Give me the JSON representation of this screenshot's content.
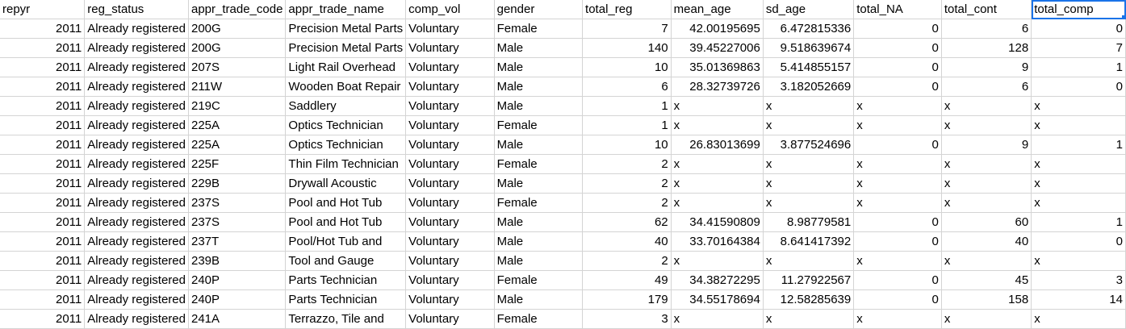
{
  "columns": [
    "repyr",
    "reg_status",
    "appr_trade_code",
    "appr_trade_name",
    "comp_vol",
    "gender",
    "total_reg",
    "mean_age",
    "sd_age",
    "total_NA",
    "total_cont",
    "total_comp"
  ],
  "rows": [
    [
      "2011",
      "Already registered",
      "200G",
      "Precision Metal Parts",
      "Voluntary",
      "Female",
      "7",
      "42.00195695",
      "6.472815336",
      "0",
      "6",
      "0"
    ],
    [
      "2011",
      "Already registered",
      "200G",
      "Precision Metal Parts",
      "Voluntary",
      "Male",
      "140",
      "39.45227006",
      "9.518639674",
      "0",
      "128",
      "7"
    ],
    [
      "2011",
      "Already registered",
      "207S",
      "Light Rail Overhead",
      "Voluntary",
      "Male",
      "10",
      "35.01369863",
      "5.414855157",
      "0",
      "9",
      "1"
    ],
    [
      "2011",
      "Already registered",
      "211W",
      "Wooden Boat Repair",
      "Voluntary",
      "Male",
      "6",
      "28.32739726",
      "3.182052669",
      "0",
      "6",
      "0"
    ],
    [
      "2011",
      "Already registered",
      "219C",
      "Saddlery",
      "Voluntary",
      "Male",
      "1",
      "x",
      "x",
      "x",
      "x",
      "x"
    ],
    [
      "2011",
      "Already registered",
      "225A",
      "Optics Technician",
      "Voluntary",
      "Female",
      "1",
      "x",
      "x",
      "x",
      "x",
      "x"
    ],
    [
      "2011",
      "Already registered",
      "225A",
      "Optics Technician",
      "Voluntary",
      "Male",
      "10",
      "26.83013699",
      "3.877524696",
      "0",
      "9",
      "1"
    ],
    [
      "2011",
      "Already registered",
      "225F",
      "Thin Film Technician",
      "Voluntary",
      "Female",
      "2",
      "x",
      "x",
      "x",
      "x",
      "x"
    ],
    [
      "2011",
      "Already registered",
      "229B",
      "Drywall Acoustic",
      "Voluntary",
      "Male",
      "2",
      "x",
      "x",
      "x",
      "x",
      "x"
    ],
    [
      "2011",
      "Already registered",
      "237S",
      "Pool and Hot Tub",
      "Voluntary",
      "Female",
      "2",
      "x",
      "x",
      "x",
      "x",
      "x"
    ],
    [
      "2011",
      "Already registered",
      "237S",
      "Pool and Hot Tub",
      "Voluntary",
      "Male",
      "62",
      "34.41590809",
      "8.98779581",
      "0",
      "60",
      "1"
    ],
    [
      "2011",
      "Already registered",
      "237T",
      "Pool/Hot Tub and",
      "Voluntary",
      "Male",
      "40",
      "33.70164384",
      "8.641417392",
      "0",
      "40",
      "0"
    ],
    [
      "2011",
      "Already registered",
      "239B",
      "Tool and Gauge",
      "Voluntary",
      "Male",
      "2",
      "x",
      "x",
      "x",
      "x",
      "x"
    ],
    [
      "2011",
      "Already registered",
      "240P",
      "Parts Technician",
      "Voluntary",
      "Female",
      "49",
      "34.38272295",
      "11.27922567",
      "0",
      "45",
      "3"
    ],
    [
      "2011",
      "Already registered",
      "240P",
      "Parts Technician",
      "Voluntary",
      "Male",
      "179",
      "34.55178694",
      "12.58285639",
      "0",
      "158",
      "14"
    ],
    [
      "2011",
      "Already registered",
      "241A",
      "Terrazzo, Tile and",
      "Voluntary",
      "Female",
      "3",
      "x",
      "x",
      "x",
      "x",
      "x"
    ]
  ],
  "selected_header": "total_comp"
}
